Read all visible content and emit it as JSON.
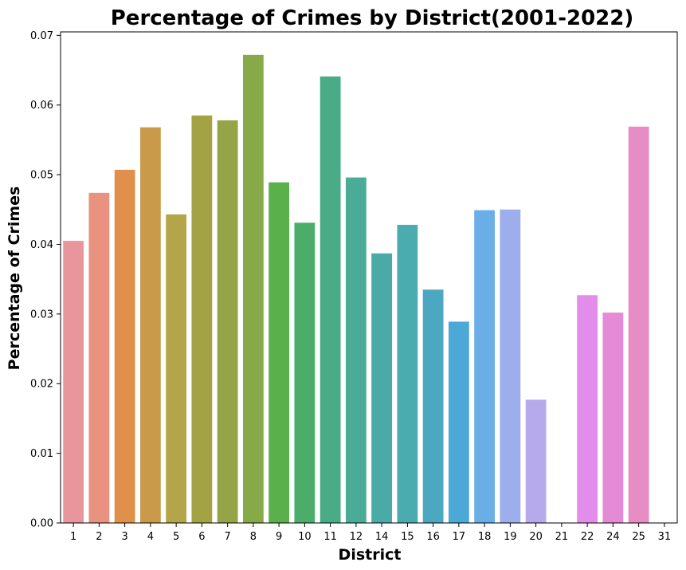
{
  "chart_data": {
    "type": "bar",
    "title": "Percentage of Crimes by District(2001-2022)",
    "xlabel": "District",
    "ylabel": "Percentage of Crimes",
    "ylim": [
      0,
      0.0705
    ],
    "yticks": [
      "0.00",
      "0.01",
      "0.02",
      "0.03",
      "0.04",
      "0.05",
      "0.06",
      "0.07"
    ],
    "grid": false,
    "categories": [
      "1",
      "2",
      "3",
      "4",
      "5",
      "6",
      "7",
      "8",
      "9",
      "10",
      "11",
      "12",
      "14",
      "15",
      "16",
      "17",
      "18",
      "19",
      "20",
      "21",
      "22",
      "24",
      "25",
      "31"
    ],
    "values": [
      0.0405,
      0.0474,
      0.0507,
      0.0568,
      0.0443,
      0.0585,
      0.0578,
      0.0672,
      0.0489,
      0.0431,
      0.0641,
      0.0496,
      0.0387,
      0.0428,
      0.0335,
      0.0289,
      0.0449,
      0.045,
      0.0177,
      0.0,
      0.0327,
      0.0302,
      0.0569,
      5e-05
    ],
    "colors": [
      "#e8969c",
      "#e8927f",
      "#e1904c",
      "#c99a4a",
      "#b5a54a",
      "#a3a345",
      "#95a446",
      "#85aa47",
      "#5ab04b",
      "#4cad6b",
      "#4aab87",
      "#4aab97",
      "#4aaaa5",
      "#4bacaf",
      "#4ca7c0",
      "#4ca9d7",
      "#6aaee7",
      "#9caeeb",
      "#b6a9ec",
      "#cf9eec",
      "#e28de9",
      "#e58ad6",
      "#e78dc6",
      "#e98bb8"
    ]
  }
}
